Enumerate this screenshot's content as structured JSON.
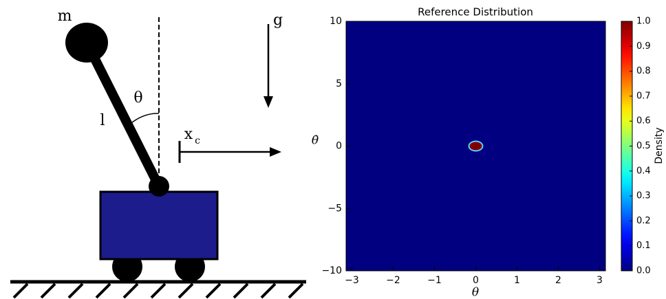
{
  "diagram": {
    "mass": "m",
    "gravity": "g",
    "angle": "θ",
    "length": "l",
    "position": "x",
    "position_subscript": "c"
  },
  "chart_data": {
    "type": "heatmap",
    "title": "Reference Distribution",
    "x_label": "θ",
    "y_label": "θ̇",
    "x": [
      0
    ],
    "y": [
      0
    ],
    "values": [
      1.0
    ],
    "xlim": [
      -3.14159,
      3.14159
    ],
    "ylim": [
      -10,
      10
    ],
    "xticks": [
      {
        "value": -3,
        "label": "−3"
      },
      {
        "value": -2,
        "label": "−2"
      },
      {
        "value": -1,
        "label": "−1"
      },
      0,
      1,
      2,
      3
    ],
    "yticks": [
      {
        "value": -10,
        "label": "−10"
      },
      {
        "value": -5,
        "label": "−5"
      },
      0,
      5,
      10
    ],
    "colorbar": {
      "label": "Density",
      "colormap": "jet",
      "lim": [
        0,
        1
      ],
      "ticks": [
        {
          "value": 0,
          "label": "0.0"
        },
        0.1,
        0.2,
        0.3,
        0.4,
        0.5,
        0.6,
        0.7,
        0.8,
        0.9,
        {
          "value": 1,
          "label": "1.0"
        }
      ]
    }
  }
}
